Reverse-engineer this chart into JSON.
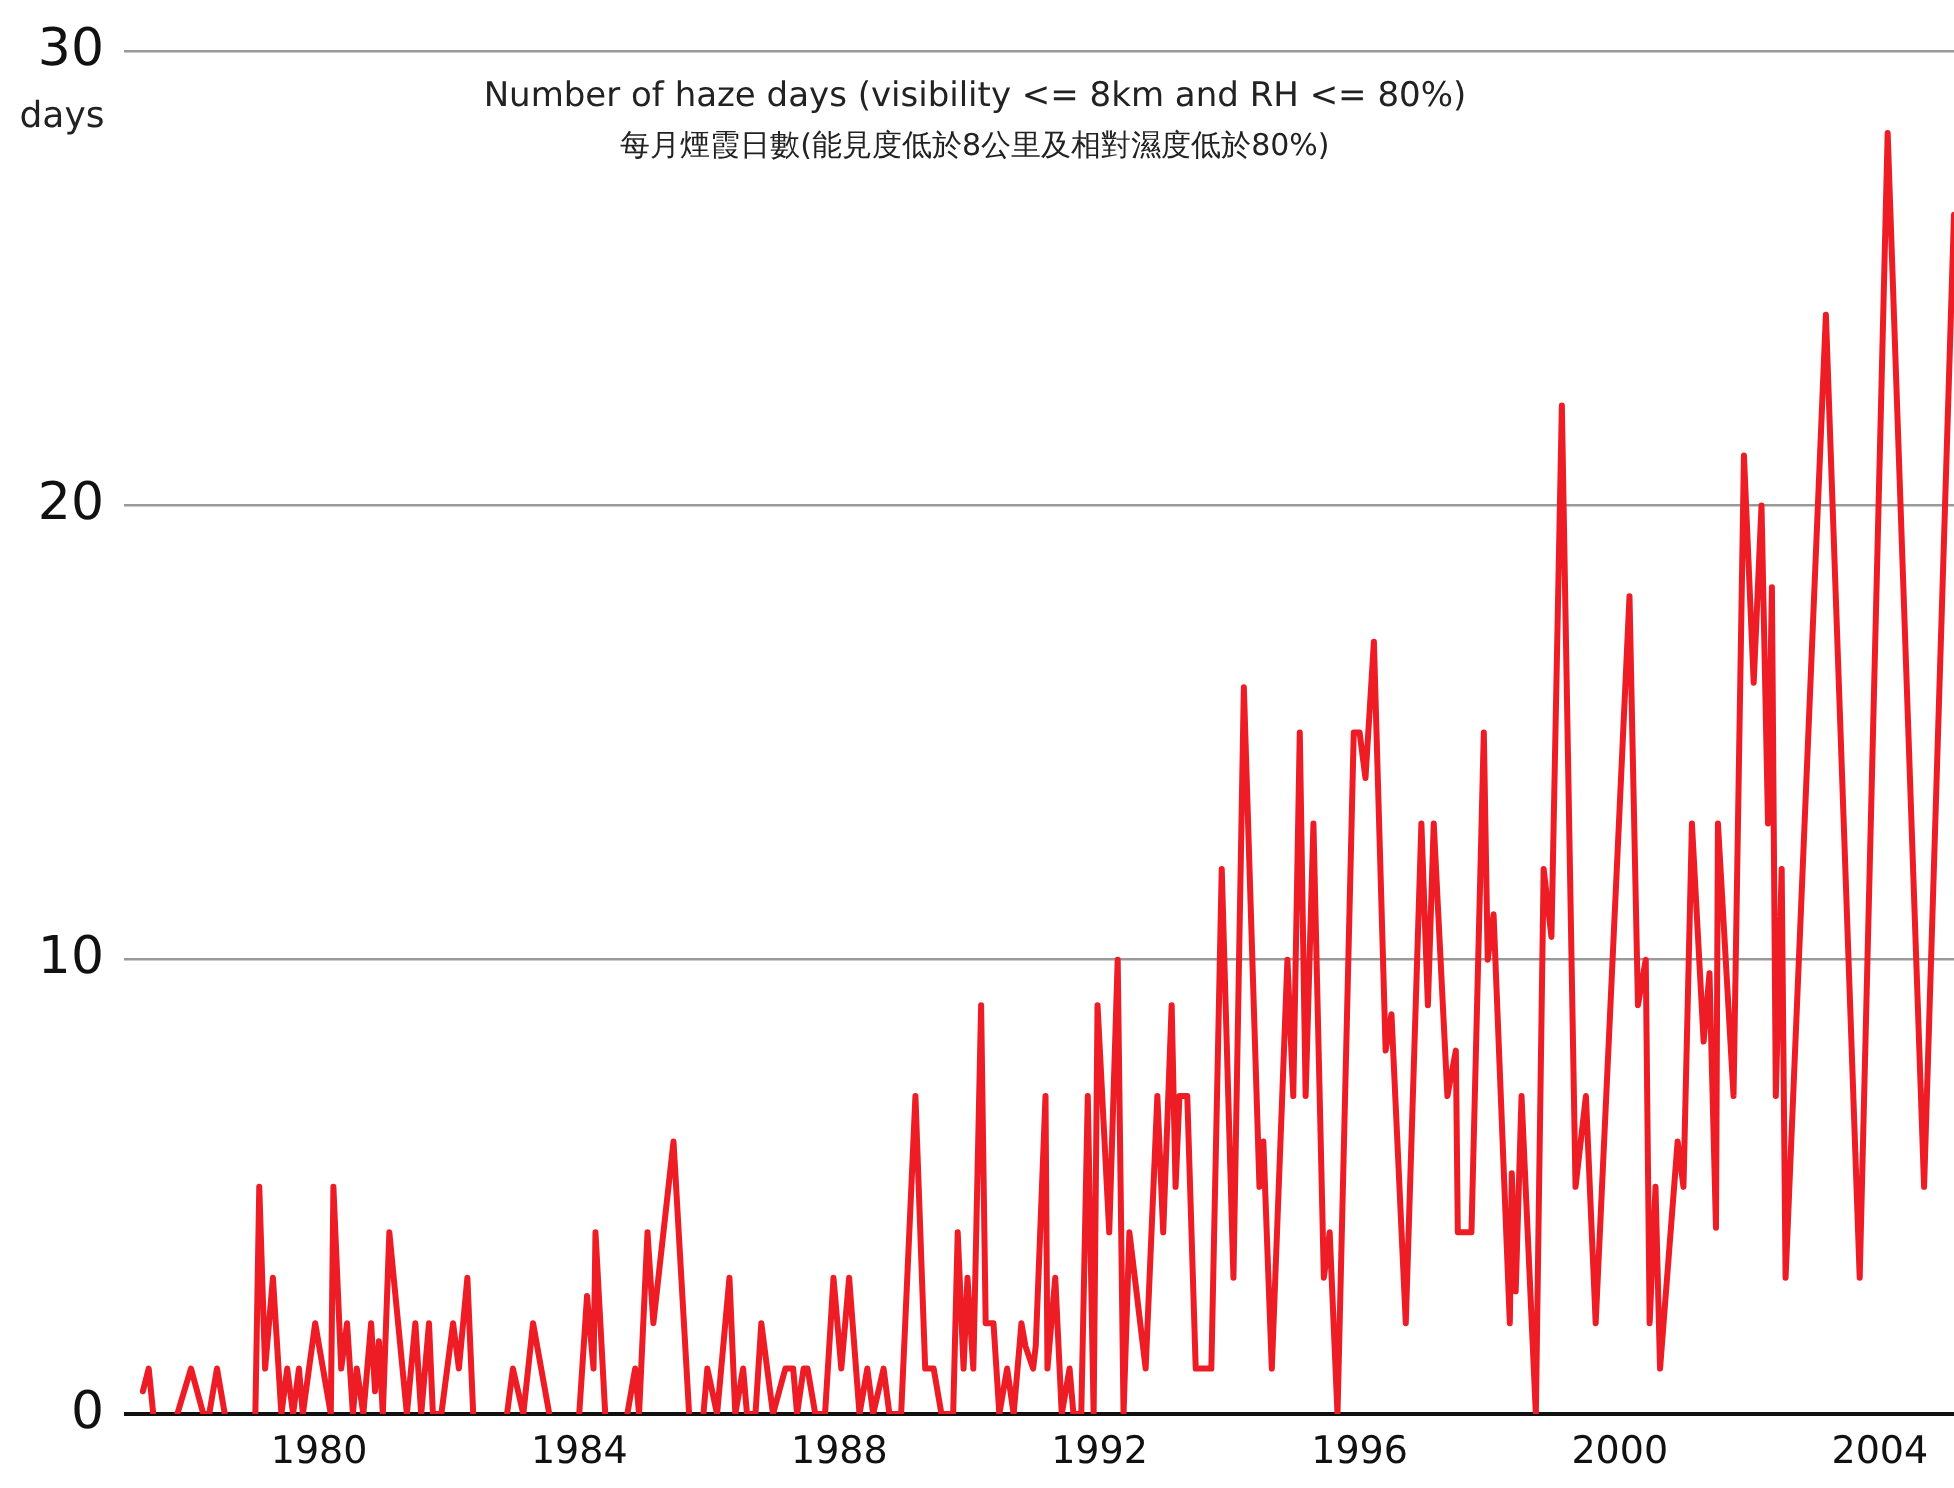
{
  "chart_data": {
    "type": "line",
    "title": "Number of haze days (visibility <= 8km and RH <= 80%)",
    "subtitle": "每月煙霞日數(能見度低於8公里及相對濕度低於80%)",
    "ylabel": "days",
    "xlim": [
      1977,
      2005.14
    ],
    "xticks": [
      1980,
      1984,
      1988,
      1992,
      1996,
      2000,
      2004
    ],
    "ylim": [
      0,
      30
    ],
    "yticks": [
      0,
      10,
      20,
      30
    ],
    "grid": "y",
    "legend": false,
    "marker": "none",
    "line_style": "solid",
    "series": [
      {
        "color": "#ee1c25",
        "x": [
          1977.29,
          1977.38,
          1977.45,
          1977.6,
          1977.82,
          1978.03,
          1978.22,
          1978.31,
          1978.43,
          1978.55,
          1978.8,
          1979.02,
          1979.08,
          1979.17,
          1979.29,
          1979.42,
          1979.51,
          1979.6,
          1979.69,
          1979.75,
          1979.94,
          1980.18,
          1980.22,
          1980.34,
          1980.43,
          1980.52,
          1980.58,
          1980.68,
          1980.8,
          1980.86,
          1980.92,
          1980.98,
          1981.08,
          1981.35,
          1981.48,
          1981.57,
          1981.69,
          1981.75,
          1981.88,
          1982.06,
          1982.15,
          1982.28,
          1982.37,
          1982.6,
          1982.89,
          1982.98,
          1983.14,
          1983.29,
          1983.54,
          1983.8,
          1984.0,
          1984.12,
          1984.22,
          1984.25,
          1984.4,
          1984.6,
          1984.74,
          1984.86,
          1984.92,
          1985.05,
          1985.14,
          1985.45,
          1985.69,
          1985.8,
          1985.91,
          1985.97,
          1986.12,
          1986.31,
          1986.4,
          1986.52,
          1986.58,
          1986.71,
          1986.8,
          1986.98,
          1987.17,
          1987.29,
          1987.35,
          1987.45,
          1987.51,
          1987.63,
          1987.78,
          1987.91,
          1988.03,
          1988.15,
          1988.31,
          1988.43,
          1988.52,
          1988.68,
          1988.77,
          1988.95,
          1989.17,
          1989.32,
          1989.45,
          1989.57,
          1989.75,
          1989.82,
          1989.91,
          1989.97,
          1990.06,
          1990.18,
          1990.25,
          1990.37,
          1990.46,
          1990.58,
          1990.68,
          1990.8,
          1990.86,
          1990.98,
          1991.02,
          1991.17,
          1991.2,
          1991.32,
          1991.42,
          1991.54,
          1991.6,
          1991.72,
          1991.82,
          1991.91,
          1991.97,
          1992.15,
          1992.28,
          1992.37,
          1992.46,
          1992.71,
          1992.89,
          1992.98,
          1993.11,
          1993.17,
          1993.23,
          1993.35,
          1993.48,
          1993.72,
          1993.88,
          1994.06,
          1994.22,
          1994.46,
          1994.52,
          1994.65,
          1994.89,
          1994.98,
          1995.08,
          1995.17,
          1995.29,
          1995.45,
          1995.54,
          1995.66,
          1995.91,
          1996.0,
          1996.09,
          1996.22,
          1996.4,
          1996.49,
          1996.71,
          1996.95,
          1997.05,
          1997.14,
          1997.35,
          1997.48,
          1997.51,
          1997.72,
          1997.91,
          1997.97,
          1998.06,
          1998.31,
          1998.34,
          1998.4,
          1998.49,
          1998.71,
          1998.83,
          1998.95,
          1999.11,
          1999.32,
          1999.48,
          1999.63,
          2000.15,
          2000.28,
          2000.4,
          2000.46,
          2000.55,
          2000.62,
          2000.89,
          2000.98,
          2001.11,
          2001.29,
          2001.38,
          2001.48,
          2001.51,
          2001.75,
          2001.91,
          2002.06,
          2002.18,
          2002.28,
          2002.34,
          2002.4,
          2002.49,
          2002.55,
          2003.17,
          2003.69,
          2004.12,
          2004.68,
          2005.14
        ],
        "values": [
          0.5,
          1,
          0,
          null,
          0,
          1,
          0,
          0,
          1,
          0,
          null,
          0,
          5,
          1,
          3,
          0,
          1,
          0,
          1,
          0,
          2,
          0,
          5,
          1,
          2,
          0,
          1,
          0,
          2,
          0.5,
          1.6,
          0,
          4,
          0,
          2,
          0,
          2,
          0,
          0,
          2,
          1,
          3,
          0,
          null,
          0,
          1,
          0,
          2,
          0,
          null,
          0,
          2.6,
          1,
          4,
          0,
          null,
          0,
          1,
          0,
          4,
          2,
          6,
          0,
          null,
          0,
          1,
          0,
          3,
          0,
          1,
          0,
          0,
          2,
          0,
          1,
          1,
          0,
          1,
          1,
          0,
          0,
          3,
          1,
          3,
          0,
          1,
          0,
          1,
          0,
          0,
          7,
          1,
          1,
          0,
          0,
          4,
          1,
          3,
          1,
          9,
          2,
          2,
          0,
          1,
          0,
          2,
          1.5,
          1,
          1.5,
          7,
          1,
          3,
          0,
          1,
          0,
          0,
          7,
          0,
          9,
          4,
          10,
          0,
          4,
          1,
          7,
          4,
          9,
          5,
          7,
          7,
          1,
          1,
          12,
          3,
          16,
          5,
          6,
          1,
          10,
          7,
          15,
          7,
          13,
          3,
          4,
          0,
          15,
          15,
          14,
          17,
          8,
          8.8,
          2,
          13,
          9,
          13,
          7,
          8,
          4,
          4,
          15,
          10,
          11,
          2,
          5.3,
          2.7,
          7,
          0,
          12,
          10.5,
          22.2,
          5,
          7,
          2,
          18,
          9,
          10,
          2,
          5,
          1,
          6,
          5,
          13,
          8.2,
          9.7,
          4.1,
          13,
          7,
          21.1,
          16.1,
          20,
          13,
          18.2,
          7,
          12,
          3,
          24.2,
          3,
          28.2,
          5,
          26.4
        ]
      }
    ]
  }
}
